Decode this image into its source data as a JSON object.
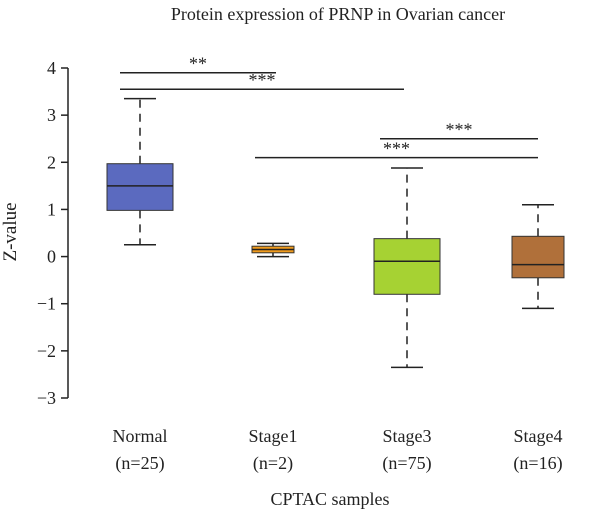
{
  "chart_data": {
    "type": "box",
    "title": "Protein expression of PRNP in Ovarian cancer",
    "xlabel": "CPTAC samples",
    "ylabel": "Z-value",
    "ylim": [
      -3,
      4
    ],
    "yticks": [
      "4",
      "3",
      "2",
      "1",
      "0",
      "−1",
      "−2",
      "−3"
    ],
    "grid": false,
    "categories": [
      {
        "name": "Normal",
        "n_label": "(n=25)",
        "whisker_low": 0.25,
        "q1": 0.98,
        "median": 1.5,
        "q3": 1.97,
        "whisker_high": 3.35,
        "color": "#5b6abf"
      },
      {
        "name": "Stage1",
        "n_label": "(n=2)",
        "whisker_low": 0.0,
        "q1": 0.08,
        "median": 0.15,
        "q3": 0.22,
        "whisker_high": 0.28,
        "color": "#ef9b1e"
      },
      {
        "name": "Stage3",
        "n_label": "(n=75)",
        "whisker_low": -2.35,
        "q1": -0.8,
        "median": -0.1,
        "q3": 0.38,
        "whisker_high": 1.88,
        "color": "#a6d233"
      },
      {
        "name": "Stage4",
        "n_label": "(n=16)",
        "whisker_low": -1.1,
        "q1": -0.45,
        "median": -0.17,
        "q3": 0.43,
        "whisker_high": 1.1,
        "color": "#b0703a"
      }
    ],
    "significance": [
      {
        "from": 0,
        "to": 1,
        "label": "**",
        "y": 3.9
      },
      {
        "from": 0,
        "to": 2,
        "label": "***",
        "y": 3.55
      },
      {
        "from": 1,
        "to": 3,
        "label": "***",
        "y": 2.1
      },
      {
        "from": 2,
        "to": 3,
        "label": "***",
        "y": 2.5
      }
    ]
  }
}
